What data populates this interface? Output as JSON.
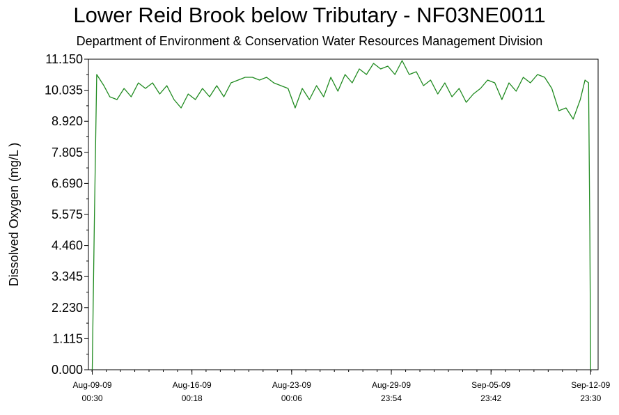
{
  "chart_data": {
    "type": "line",
    "title": "Lower Reid Brook below Tributary - NF03NE0011",
    "subtitle": "Department of Environment & Conservation Water Resources Management Division",
    "ylabel": "Dissolved Oxygen (mg/L )",
    "xlabel": "",
    "ylim": [
      0,
      11.15
    ],
    "yticks": [
      "0.000",
      "1.115",
      "2.230",
      "3.345",
      "4.460",
      "5.575",
      "6.690",
      "7.805",
      "8.920",
      "10.035",
      "11.150"
    ],
    "xlim": [
      "Aug-08-09 18:00",
      "Sep-13-09 12:00"
    ],
    "xticks": [
      {
        "date": "Aug-09-09",
        "time": "00:30"
      },
      {
        "date": "Aug-16-09",
        "time": "00:18"
      },
      {
        "date": "Aug-23-09",
        "time": "00:06"
      },
      {
        "date": "Aug-29-09",
        "time": "23:54"
      },
      {
        "date": "Sep-05-09",
        "time": "23:42"
      },
      {
        "date": "Sep-12-09",
        "time": "23:30"
      }
    ],
    "grid": false,
    "color": "#1f8a1f",
    "series": [
      {
        "name": "",
        "points": [
          [
            "Aug-09-09 00:30",
            0.0
          ],
          [
            "Aug-09-09 04:00",
            5.3
          ],
          [
            "Aug-09-09 08:00",
            10.6
          ],
          [
            "Aug-09-09 20:00",
            10.2
          ],
          [
            "Aug-10-09 06:00",
            9.8
          ],
          [
            "Aug-10-09 18:00",
            9.7
          ],
          [
            "Aug-11-09 06:00",
            10.1
          ],
          [
            "Aug-11-09 18:00",
            9.8
          ],
          [
            "Aug-12-09 06:00",
            10.3
          ],
          [
            "Aug-12-09 18:00",
            10.1
          ],
          [
            "Aug-13-09 06:00",
            10.3
          ],
          [
            "Aug-13-09 18:00",
            9.9
          ],
          [
            "Aug-14-09 06:00",
            10.2
          ],
          [
            "Aug-14-09 18:00",
            9.7
          ],
          [
            "Aug-15-09 06:00",
            9.4
          ],
          [
            "Aug-15-09 18:00",
            9.9
          ],
          [
            "Aug-16-09 06:00",
            9.7
          ],
          [
            "Aug-16-09 18:00",
            10.1
          ],
          [
            "Aug-17-09 06:00",
            9.8
          ],
          [
            "Aug-17-09 18:00",
            10.2
          ],
          [
            "Aug-18-09 06:00",
            9.8
          ],
          [
            "Aug-18-09 18:00",
            10.3
          ],
          [
            "Aug-19-09 06:00",
            10.4
          ],
          [
            "Aug-19-09 18:00",
            10.5
          ],
          [
            "Aug-20-09 06:00",
            10.5
          ],
          [
            "Aug-20-09 18:00",
            10.4
          ],
          [
            "Aug-21-09 06:00",
            10.5
          ],
          [
            "Aug-21-09 18:00",
            10.3
          ],
          [
            "Aug-22-09 06:00",
            10.2
          ],
          [
            "Aug-22-09 18:00",
            10.1
          ],
          [
            "Aug-23-09 06:00",
            9.4
          ],
          [
            "Aug-23-09 18:00",
            10.1
          ],
          [
            "Aug-24-09 06:00",
            9.7
          ],
          [
            "Aug-24-09 18:00",
            10.2
          ],
          [
            "Aug-25-09 06:00",
            9.8
          ],
          [
            "Aug-25-09 18:00",
            10.5
          ],
          [
            "Aug-26-09 06:00",
            10.0
          ],
          [
            "Aug-26-09 18:00",
            10.6
          ],
          [
            "Aug-27-09 06:00",
            10.3
          ],
          [
            "Aug-27-09 18:00",
            10.8
          ],
          [
            "Aug-28-09 06:00",
            10.6
          ],
          [
            "Aug-28-09 18:00",
            11.0
          ],
          [
            "Aug-29-09 06:00",
            10.8
          ],
          [
            "Aug-29-09 18:00",
            10.9
          ],
          [
            "Aug-30-09 06:00",
            10.6
          ],
          [
            "Aug-30-09 18:00",
            11.1
          ],
          [
            "Aug-31-09 06:00",
            10.6
          ],
          [
            "Aug-31-09 18:00",
            10.7
          ],
          [
            "Sep-01-09 06:00",
            10.2
          ],
          [
            "Sep-01-09 18:00",
            10.4
          ],
          [
            "Sep-02-09 06:00",
            9.9
          ],
          [
            "Sep-02-09 18:00",
            10.3
          ],
          [
            "Sep-03-09 06:00",
            9.8
          ],
          [
            "Sep-03-09 18:00",
            10.1
          ],
          [
            "Sep-04-09 06:00",
            9.6
          ],
          [
            "Sep-04-09 18:00",
            9.9
          ],
          [
            "Sep-05-09 06:00",
            10.1
          ],
          [
            "Sep-05-09 18:00",
            10.4
          ],
          [
            "Sep-06-09 06:00",
            10.3
          ],
          [
            "Sep-06-09 18:00",
            9.7
          ],
          [
            "Sep-07-09 06:00",
            10.3
          ],
          [
            "Sep-07-09 18:00",
            10.0
          ],
          [
            "Sep-08-09 06:00",
            10.5
          ],
          [
            "Sep-08-09 18:00",
            10.3
          ],
          [
            "Sep-09-09 06:00",
            10.6
          ],
          [
            "Sep-09-09 18:00",
            10.5
          ],
          [
            "Sep-10-09 06:00",
            10.1
          ],
          [
            "Sep-10-09 18:00",
            9.3
          ],
          [
            "Sep-11-09 06:00",
            9.4
          ],
          [
            "Sep-11-09 18:00",
            9.0
          ],
          [
            "Sep-12-09 06:00",
            9.7
          ],
          [
            "Sep-12-09 14:00",
            10.4
          ],
          [
            "Sep-12-09 20:00",
            10.3
          ],
          [
            "Sep-12-09 22:00",
            5.0
          ],
          [
            "Sep-12-09 23:30",
            0.0
          ]
        ]
      }
    ]
  }
}
